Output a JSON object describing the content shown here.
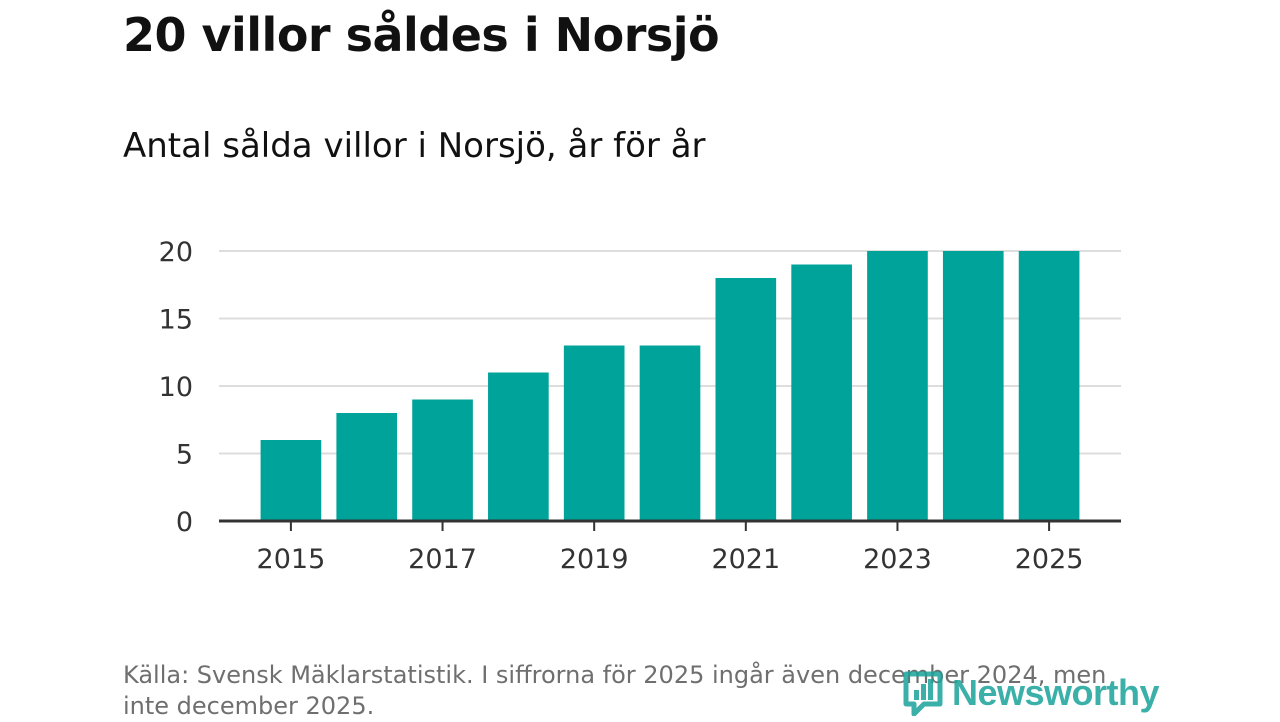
{
  "header": {
    "title": "20 villor såldes i Norsjö",
    "subtitle": "Antal sålda villor i Norsjö, år för år"
  },
  "footer": {
    "source": "Källa: Svensk Mäklarstatistik. I siffrorna för 2025 ingår även december 2024, men inte december 2025.",
    "brand": "Newsworthy"
  },
  "colors": {
    "bar": "#00a39a",
    "grid": "#dddddd",
    "axis": "#333333",
    "brand": "#1aa39a"
  },
  "chart_data": {
    "type": "bar",
    "title": "Antal sålda villor i Norsjö, år för år",
    "xlabel": "",
    "ylabel": "",
    "categories": [
      "2015",
      "2016",
      "2017",
      "2018",
      "2019",
      "2020",
      "2021",
      "2022",
      "2023",
      "2024",
      "2025"
    ],
    "values": [
      6,
      8,
      9,
      11,
      13,
      13,
      18,
      19,
      20,
      20,
      20
    ],
    "ylim": [
      0,
      20
    ],
    "yticks": [
      0,
      5,
      10,
      15,
      20
    ],
    "xtick_labels": [
      "2015",
      "2017",
      "2019",
      "2021",
      "2023",
      "2025"
    ],
    "grid": true,
    "legend": "none"
  }
}
